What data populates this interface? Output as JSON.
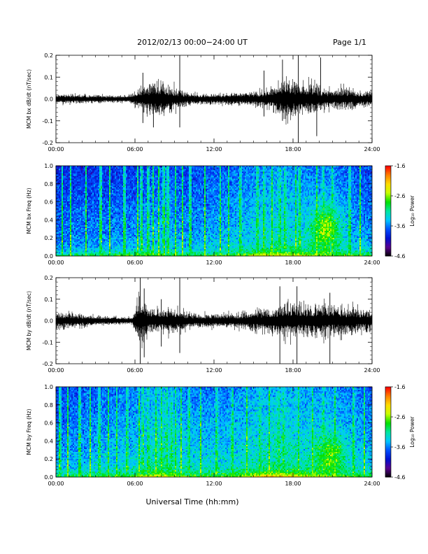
{
  "header": {
    "title": "2012/02/13  00:00−24:00 UT",
    "page": "Page 1/1"
  },
  "xlabel": "Universal Time (hh:mm)",
  "colors": {
    "waveform": "#000000",
    "colormap": [
      "#000000",
      "#5a0090",
      "#0010d0",
      "#0050ff",
      "#00c8ff",
      "#00e6a0",
      "#00e000",
      "#c8ff00",
      "#ffdc00",
      "#ff8000",
      "#ff0000"
    ]
  },
  "colorbar": {
    "label": "Log₁₀ Power",
    "ticks": [
      "-1.6",
      "-2.6",
      "-3.6",
      "-4.6"
    ],
    "range": [
      -4.6,
      -1.6
    ]
  },
  "chart_data": [
    {
      "type": "line",
      "id": "bx-dbdt",
      "ylabel": "MCM bx dB/dt (nT/sec)",
      "xlim": [
        0,
        24
      ],
      "ylim": [
        -0.2,
        0.2
      ],
      "xticks": [
        "00:00",
        "06:00",
        "12:00",
        "18:00",
        "24:00"
      ],
      "yticks": [
        "0.2",
        "0.1",
        "0.0",
        "-0.1",
        "-0.2"
      ],
      "x_hours": [
        0,
        2,
        4,
        5.5,
        6,
        6.5,
        7,
        7.5,
        8,
        9,
        10,
        11,
        12,
        13,
        14,
        15,
        15.5,
        16,
        16.5,
        17,
        17.5,
        18,
        18.5,
        19,
        19.5,
        20,
        21,
        22,
        23,
        24
      ],
      "amplitude": [
        0.03,
        0.025,
        0.02,
        0.02,
        0.05,
        0.07,
        0.1,
        0.12,
        0.1,
        0.08,
        0.04,
        0.03,
        0.03,
        0.035,
        0.04,
        0.05,
        0.055,
        0.06,
        0.08,
        0.11,
        0.15,
        0.12,
        0.1,
        0.1,
        0.12,
        0.07,
        0.06,
        0.07,
        0.06,
        0.05
      ],
      "spikes": [
        {
          "t": 6.6,
          "min": -0.11,
          "max": 0.12
        },
        {
          "t": 7.4,
          "min": -0.13,
          "max": 0.06
        },
        {
          "t": 9.4,
          "min": -0.13,
          "max": 0.2
        },
        {
          "t": 15.8,
          "min": -0.08,
          "max": 0.13
        },
        {
          "t": 17.2,
          "min": -0.1,
          "max": 0.18
        },
        {
          "t": 18.4,
          "min": -0.2,
          "max": 0.2
        },
        {
          "t": 19.8,
          "min": -0.17,
          "max": 0.07
        },
        {
          "t": 20.1,
          "min": -0.05,
          "max": 0.19
        }
      ]
    },
    {
      "type": "heatmap",
      "id": "bx-spectrogram",
      "ylabel": "MCM bx Freq (Hz)",
      "xlim": [
        0,
        24
      ],
      "ylim": [
        0.0,
        1.0
      ],
      "xticks": [
        "00:00",
        "06:00",
        "12:00",
        "18:00",
        "24:00"
      ],
      "yticks": [
        "1.0",
        "0.8",
        "0.6",
        "0.4",
        "0.2",
        "0.0"
      ],
      "value_unit": "Log10 Power",
      "background_hours": [
        0,
        6,
        8,
        10,
        13,
        15,
        17,
        19,
        21,
        22,
        24
      ],
      "background_level": [
        -3.9,
        -3.8,
        -3.7,
        -3.8,
        -3.7,
        -3.6,
        -3.5,
        -3.6,
        -3.6,
        -3.7,
        -3.8
      ],
      "lowfreq_enhancement_hours": [
        0,
        6,
        10,
        13,
        15,
        16,
        17,
        19,
        21,
        24
      ],
      "lowfreq_enhancement_level": [
        -3.0,
        -2.6,
        -2.8,
        -2.7,
        -2.4,
        -2.2,
        -2.2,
        -2.4,
        -2.6,
        -2.8
      ],
      "emission": {
        "center_hours": 20.5,
        "center_freq_hz": 0.3,
        "peak_level": -2.6,
        "top_freq_hz": 0.55
      },
      "broadband_bursts_hours": [
        0.5,
        1.1,
        2.3,
        3.4,
        4.1,
        5.2,
        6.2,
        6.5,
        7.0,
        7.4,
        7.8,
        8.2,
        8.5,
        9.1,
        9.6,
        10.2,
        11.3,
        12.5,
        13.1,
        14.0,
        15.3,
        15.8,
        16.4,
        17.0,
        17.4,
        18.2,
        18.5,
        19.8,
        20.3,
        21.0,
        22.3,
        23.1
      ]
    },
    {
      "type": "line",
      "id": "by-dbdt",
      "ylabel": "MCM by dB/dt (nT/sec)",
      "xlim": [
        0,
        24
      ],
      "ylim": [
        -0.2,
        0.2
      ],
      "xticks": [
        "00:00",
        "06:00",
        "12:00",
        "18:00",
        "24:00"
      ],
      "yticks": [
        "0.2",
        "0.1",
        "0.0",
        "-0.1",
        "-0.2"
      ],
      "x_hours": [
        0,
        1,
        3,
        5,
        5.8,
        6.2,
        6.6,
        7,
        8,
        9,
        10,
        11,
        12,
        13,
        14,
        15,
        16,
        17,
        18,
        18.5,
        19,
        20,
        21,
        22,
        23,
        24
      ],
      "amplitude": [
        0.06,
        0.05,
        0.03,
        0.02,
        0.02,
        0.14,
        0.16,
        0.09,
        0.08,
        0.09,
        0.05,
        0.04,
        0.045,
        0.05,
        0.05,
        0.07,
        0.08,
        0.1,
        0.12,
        0.1,
        0.11,
        0.12,
        0.1,
        0.09,
        0.08,
        0.07
      ],
      "spikes": [
        {
          "t": 6.4,
          "min": -0.2,
          "max": 0.2
        },
        {
          "t": 6.7,
          "min": -0.17,
          "max": 0.15
        },
        {
          "t": 8.0,
          "min": -0.12,
          "max": 0.1
        },
        {
          "t": 9.4,
          "min": -0.15,
          "max": 0.2
        },
        {
          "t": 17.0,
          "min": -0.2,
          "max": 0.16
        },
        {
          "t": 18.3,
          "min": -0.2,
          "max": 0.16
        },
        {
          "t": 20.8,
          "min": -0.2,
          "max": 0.13
        }
      ]
    },
    {
      "type": "heatmap",
      "id": "by-spectrogram",
      "ylabel": "MCM by Freq (Hz)",
      "xlim": [
        0,
        24
      ],
      "ylim": [
        0.0,
        1.0
      ],
      "xticks": [
        "00:00",
        "06:00",
        "12:00",
        "18:00",
        "24:00"
      ],
      "yticks": [
        "1.0",
        "0.8",
        "0.6",
        "0.4",
        "0.2",
        "0.0"
      ],
      "value_unit": "Log10 Power",
      "background_hours": [
        0,
        6,
        8,
        10,
        13,
        15,
        17,
        19,
        21,
        22,
        24
      ],
      "background_level": [
        -3.8,
        -3.6,
        -3.4,
        -3.6,
        -3.6,
        -3.5,
        -3.4,
        -3.5,
        -3.5,
        -3.6,
        -3.7
      ],
      "lowfreq_enhancement_hours": [
        0,
        6,
        8,
        10,
        13,
        15,
        16,
        17,
        19,
        21,
        24
      ],
      "lowfreq_enhancement_level": [
        -2.9,
        -2.6,
        -2.2,
        -2.7,
        -2.6,
        -2.3,
        -2.0,
        -2.0,
        -2.3,
        -2.5,
        -2.8
      ],
      "emission": {
        "center_hours": 20.8,
        "center_freq_hz": 0.22,
        "peak_level": -2.7,
        "top_freq_hz": 0.45
      },
      "broadband_bursts_hours": [
        0.3,
        0.9,
        1.8,
        2.6,
        3.3,
        4.0,
        4.6,
        5.4,
        6.3,
        6.6,
        7.0,
        7.6,
        8.0,
        8.4,
        8.8,
        9.1,
        9.5,
        10.1,
        11.0,
        12.2,
        13.4,
        14.5,
        15.5,
        16.2,
        16.9,
        17.3,
        18.4,
        19.5,
        20.3,
        21.2,
        22.6,
        23.4
      ]
    }
  ]
}
